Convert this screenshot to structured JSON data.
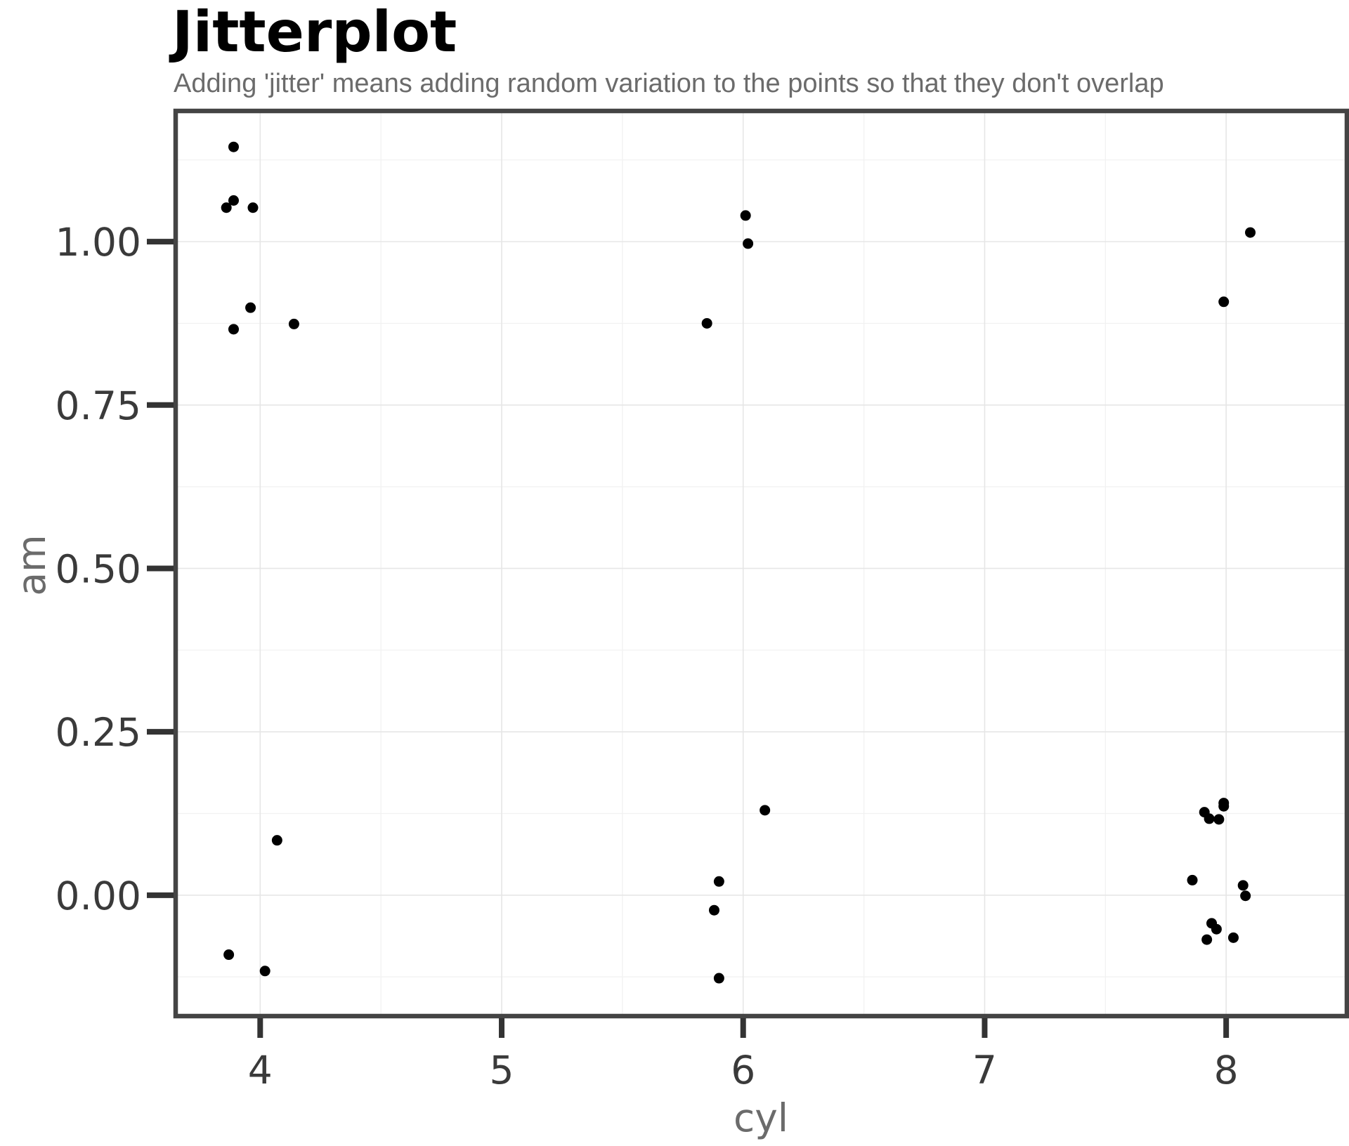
{
  "chart_data": {
    "type": "scatter",
    "title": "Jitterplot",
    "subtitle": "Adding 'jitter' means adding random variation to the points so that they don't overlap",
    "xlabel": "cyl",
    "ylabel": "am",
    "xlim": [
      3.65,
      8.5
    ],
    "ylim": [
      -0.185,
      1.2
    ],
    "x_ticks": [
      4,
      5,
      6,
      7,
      8
    ],
    "x_tick_labels": [
      "4",
      "5",
      "6",
      "7",
      "8"
    ],
    "y_ticks": [
      0,
      0.25,
      0.5,
      0.75,
      1.0
    ],
    "y_tick_labels": [
      "0.00",
      "0.25",
      "0.50",
      "0.75",
      "1.00"
    ],
    "grid": true,
    "point_color": "#000000",
    "points": [
      {
        "x": 3.89,
        "y": 1.145
      },
      {
        "x": 3.89,
        "y": 1.063
      },
      {
        "x": 3.86,
        "y": 1.052
      },
      {
        "x": 3.97,
        "y": 1.052
      },
      {
        "x": 3.96,
        "y": 0.899
      },
      {
        "x": 3.89,
        "y": 0.866
      },
      {
        "x": 4.14,
        "y": 0.874
      },
      {
        "x": 4.07,
        "y": 0.084
      },
      {
        "x": 3.87,
        "y": -0.091
      },
      {
        "x": 4.02,
        "y": -0.116
      },
      {
        "x": 6.01,
        "y": 1.04
      },
      {
        "x": 6.02,
        "y": 0.997
      },
      {
        "x": 5.85,
        "y": 0.875
      },
      {
        "x": 6.09,
        "y": 0.13
      },
      {
        "x": 5.9,
        "y": 0.021
      },
      {
        "x": 5.88,
        "y": -0.023
      },
      {
        "x": 5.9,
        "y": -0.127
      },
      {
        "x": 8.1,
        "y": 1.014
      },
      {
        "x": 7.99,
        "y": 0.908
      },
      {
        "x": 7.99,
        "y": 0.141
      },
      {
        "x": 7.99,
        "y": 0.136
      },
      {
        "x": 7.91,
        "y": 0.127
      },
      {
        "x": 7.93,
        "y": 0.117
      },
      {
        "x": 7.97,
        "y": 0.116
      },
      {
        "x": 7.86,
        "y": 0.023
      },
      {
        "x": 8.07,
        "y": 0.015
      },
      {
        "x": 8.08,
        "y": -0.001
      },
      {
        "x": 7.94,
        "y": -0.043
      },
      {
        "x": 7.96,
        "y": -0.052
      },
      {
        "x": 7.92,
        "y": -0.068
      },
      {
        "x": 8.03,
        "y": -0.065
      }
    ]
  }
}
